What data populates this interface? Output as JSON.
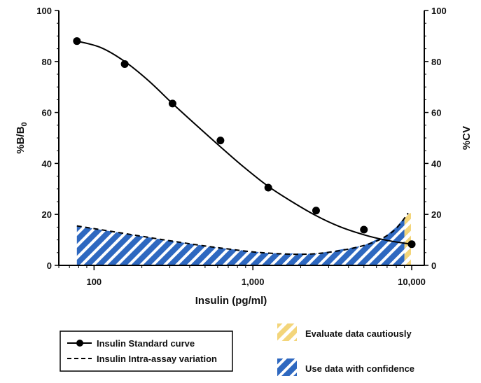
{
  "chart_data": {
    "type": "line",
    "xlabel": "Insulin (pg/ml)",
    "ylabel_main": "%B/B",
    "ylabel_sub": "0",
    "y2label": "%CV",
    "xscale": "log",
    "xlim": [
      60,
      12000
    ],
    "ylim": [
      0,
      100
    ],
    "y2lim": [
      0,
      100
    ],
    "x_ticks": [
      100,
      1000,
      10000
    ],
    "x_tick_labels": [
      "100",
      "1,000",
      "10,000"
    ],
    "y_ticks": [
      0,
      20,
      40,
      60,
      80,
      100
    ],
    "y_tick_labels": [
      "0",
      "20",
      "40",
      "60",
      "80",
      "100"
    ],
    "y2_ticks": [
      0,
      20,
      40,
      60,
      80,
      100
    ],
    "y2_tick_labels": [
      "0",
      "20",
      "40",
      "60",
      "80",
      "100"
    ],
    "series": [
      {
        "name": "Insulin Standard curve",
        "style": "solid-with-markers",
        "points": [
          [
            78,
            88
          ],
          [
            156,
            79
          ],
          [
            312,
            63.5
          ],
          [
            625,
            49
          ],
          [
            1250,
            30.5
          ],
          [
            2500,
            21.5
          ],
          [
            5000,
            14
          ],
          [
            10000,
            8.3
          ]
        ],
        "fit": [
          [
            78,
            88
          ],
          [
            110,
            85.5
          ],
          [
            156,
            80
          ],
          [
            220,
            72.5
          ],
          [
            312,
            63.5
          ],
          [
            440,
            55
          ],
          [
            625,
            46.5
          ],
          [
            880,
            38.5
          ],
          [
            1250,
            31
          ],
          [
            1760,
            25
          ],
          [
            2500,
            19.5
          ],
          [
            3520,
            15.2
          ],
          [
            5000,
            12
          ],
          [
            7000,
            9.8
          ],
          [
            10000,
            8.3
          ]
        ],
        "color": "#000000"
      },
      {
        "name": "Insulin Intra-assay variation",
        "style": "dashed",
        "points": [
          [
            78,
            15.5
          ],
          [
            156,
            12.5
          ],
          [
            312,
            9.5
          ],
          [
            625,
            6.8
          ],
          [
            1250,
            4.8
          ],
          [
            2500,
            4.6
          ],
          [
            5000,
            7.8
          ],
          [
            7500,
            13
          ],
          [
            9500,
            20.5
          ]
        ],
        "color": "#000000"
      }
    ],
    "regions": [
      {
        "name": "Use data with confidence",
        "x_range": [
          78,
          9000
        ],
        "fill_color": "#2e68c0",
        "stripe_color": "#ffffff"
      },
      {
        "name": "Evaluate data cautiously",
        "x_range": [
          9000,
          9900
        ],
        "fill_color": "#f3d57a",
        "stripe_color": "#ffffff"
      }
    ],
    "legend": {
      "placement": "bottom",
      "items": [
        "Insulin Standard curve",
        "Insulin Intra-assay variation"
      ]
    },
    "region_legend": {
      "items": [
        "Evaluate data cautiously",
        "Use data with confidence"
      ]
    },
    "grid": false
  }
}
